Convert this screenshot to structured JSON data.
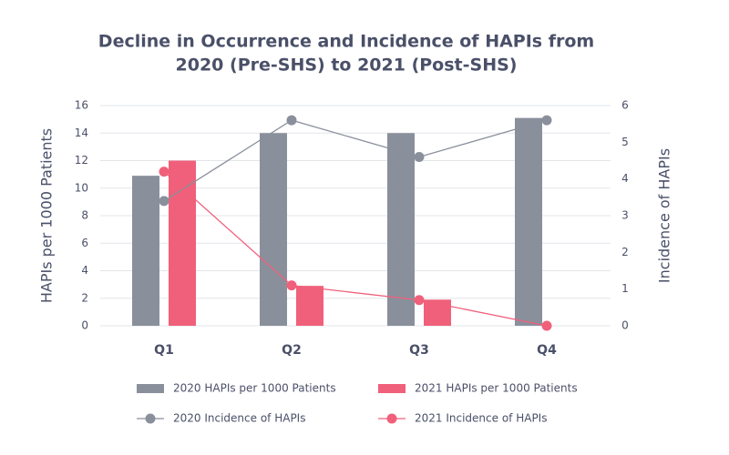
{
  "chart_data": {
    "type": "combo",
    "title": [
      "Decline in Occurrence and Incidence of HAPIs from",
      "2020 (Pre-SHS) to 2021 (Post-SHS)"
    ],
    "y_label": "HAPIs per 1000 Patients",
    "y2_label": "Incidence of HAPIs",
    "categories": [
      "Q1",
      "Q2",
      "Q3",
      "Q4"
    ],
    "series": [
      {
        "name": "2020 HAPIs per 1000 Patients",
        "type": "bar",
        "color": "#8a8f9c",
        "values": [
          10.9,
          14,
          14,
          15.1
        ]
      },
      {
        "name": "2021 HAPIs per 1000 Patients",
        "type": "bar",
        "color": "#f0607a",
        "values": [
          12,
          2.9,
          1.9,
          null
        ]
      },
      {
        "name": "2020 Incidence of HAPIs",
        "type": "line",
        "axis": "y2",
        "color": "#8a8f9c",
        "values": [
          3.4,
          5.6,
          4.6,
          5.6
        ]
      },
      {
        "name": "2021 Incidence of HAPIs",
        "type": "line",
        "axis": "y2",
        "color": "#f0607a",
        "values": [
          4.2,
          1.1,
          0.7,
          0
        ]
      }
    ],
    "ylim": [
      0,
      16
    ],
    "yticks": [
      0,
      2,
      4,
      6,
      8,
      10,
      12,
      14,
      16
    ],
    "y2lim": [
      0,
      6
    ],
    "y2ticks": [
      0,
      1,
      2,
      3,
      4,
      5,
      6
    ],
    "grid": true
  }
}
